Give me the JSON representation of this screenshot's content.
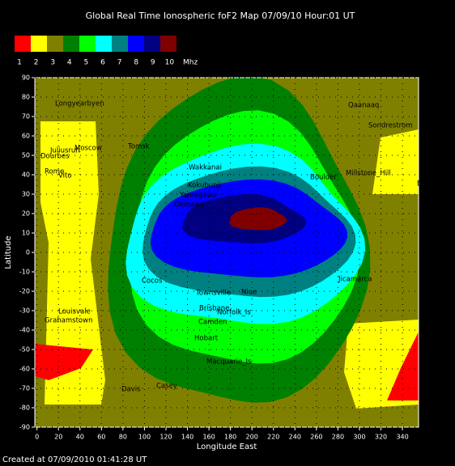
{
  "chart_data": {
    "type": "contour-map",
    "title": "Global Real Time Ionospheric foF2 Map  07/09/10 Hour:01 UT",
    "legend": [
      {
        "value": 1,
        "color": "#ff0000"
      },
      {
        "value": 2,
        "color": "#ffff00"
      },
      {
        "value": 3,
        "color": "#808000"
      },
      {
        "value": 4,
        "color": "#008000"
      },
      {
        "value": 5,
        "color": "#00ff00"
      },
      {
        "value": 6,
        "color": "#00ffff"
      },
      {
        "value": 7,
        "color": "#008080"
      },
      {
        "value": 8,
        "color": "#0000ff"
      },
      {
        "value": 9,
        "color": "#000080"
      },
      {
        "value": 10,
        "color": "#800000"
      }
    ],
    "legend_unit": "Mhz",
    "x_label": "Longitude East",
    "y_label": "Latitude",
    "xlim": [
      -2,
      355
    ],
    "ylim": [
      -90,
      90
    ],
    "xticks": [
      0,
      20,
      40,
      60,
      80,
      100,
      120,
      140,
      160,
      180,
      200,
      220,
      240,
      260,
      280,
      300,
      320,
      340
    ],
    "yticks": [
      -90,
      -80,
      -70,
      -60,
      -50,
      -40,
      -30,
      -20,
      -10,
      0,
      10,
      20,
      30,
      40,
      50,
      60,
      70,
      80,
      90
    ],
    "grid": true,
    "stations": [
      "Longyearbyen",
      "Juliusruh",
      "Moscow",
      "Dourbes",
      "Rome",
      "Vito",
      "Tomsk",
      "Wakkanai",
      "Kokubunji",
      "Yamagawa",
      "Okinawa",
      "Qaanaaq",
      "Sondrestrom",
      "Boulder",
      "Millstone_Hill",
      "El_Arenos",
      "Cocos",
      "Townsville",
      "Niue",
      "Jicamarca",
      "Brisbane",
      "Norfolk_Is",
      "Louisvale",
      "Grahamstown",
      "Camden",
      "Hobart",
      "Macquarie_Is",
      "Davis",
      "Casey"
    ],
    "footer": "Created at 07/09/2010 01:41:28 UT"
  }
}
